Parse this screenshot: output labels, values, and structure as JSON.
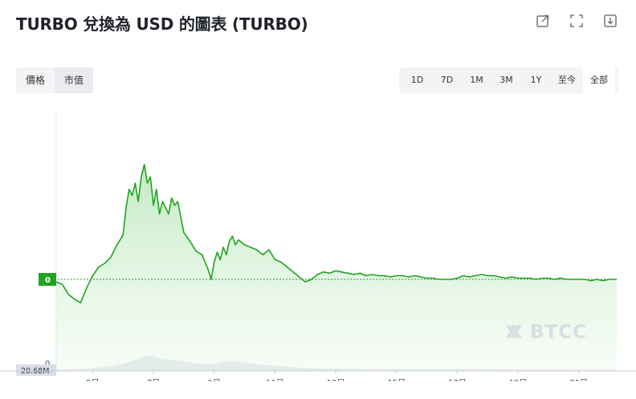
{
  "header": {
    "title": "TURBO 兌換為 USD 的圖表 (TURBO)"
  },
  "icons": [
    "share-icon",
    "fullscreen-icon",
    "download-icon"
  ],
  "metric_tabs": [
    {
      "label": "價格",
      "active": false
    },
    {
      "label": "市值",
      "active": true
    }
  ],
  "range_tabs": [
    {
      "label": "1D",
      "active": false
    },
    {
      "label": "7D",
      "active": false
    },
    {
      "label": "1M",
      "active": false
    },
    {
      "label": "3M",
      "active": false
    },
    {
      "label": "1Y",
      "active": false
    },
    {
      "label": "至今",
      "active": false
    },
    {
      "label": "全部",
      "active": true
    }
  ],
  "watermark": "BTCC",
  "colors": {
    "line": "#1ea31e",
    "fill": "#d9f2d9",
    "volume": "#d9dde6",
    "badge": "#1ea31e"
  },
  "chart_data": {
    "type": "area",
    "x_tick_labels": [
      "5日",
      "7日",
      "9日",
      "11日",
      "13日",
      "15日",
      "17日",
      "19日",
      "21日"
    ],
    "x_tick_values": [
      5,
      7,
      9,
      11,
      13,
      15,
      17,
      19,
      21
    ],
    "xlim": [
      3.8,
      22.25
    ],
    "current_value_label": "0",
    "y_axis_labels": [
      "0"
    ],
    "volume_label": "20.68M",
    "series": [
      {
        "values": [
          [
            3.8,
            0.5
          ],
          [
            4.0,
            0.48
          ],
          [
            4.2,
            0.4
          ],
          [
            4.4,
            0.36
          ],
          [
            4.6,
            0.33
          ],
          [
            4.8,
            0.45
          ],
          [
            5.0,
            0.55
          ],
          [
            5.2,
            0.62
          ],
          [
            5.4,
            0.65
          ],
          [
            5.6,
            0.7
          ],
          [
            5.8,
            0.8
          ],
          [
            6.0,
            0.88
          ],
          [
            6.1,
            1.1
          ],
          [
            6.2,
            1.25
          ],
          [
            6.3,
            1.2
          ],
          [
            6.4,
            1.3
          ],
          [
            6.5,
            1.15
          ],
          [
            6.6,
            1.35
          ],
          [
            6.7,
            1.45
          ],
          [
            6.8,
            1.3
          ],
          [
            6.9,
            1.35
          ],
          [
            7.0,
            1.12
          ],
          [
            7.1,
            1.25
          ],
          [
            7.2,
            1.05
          ],
          [
            7.3,
            1.15
          ],
          [
            7.4,
            1.1
          ],
          [
            7.5,
            1.05
          ],
          [
            7.6,
            1.18
          ],
          [
            7.7,
            1.12
          ],
          [
            7.8,
            1.15
          ],
          [
            8.0,
            0.9
          ],
          [
            8.2,
            0.83
          ],
          [
            8.4,
            0.75
          ],
          [
            8.6,
            0.72
          ],
          [
            8.8,
            0.6
          ],
          [
            8.9,
            0.52
          ],
          [
            9.0,
            0.66
          ],
          [
            9.1,
            0.74
          ],
          [
            9.2,
            0.68
          ],
          [
            9.3,
            0.78
          ],
          [
            9.4,
            0.72
          ],
          [
            9.5,
            0.83
          ],
          [
            9.6,
            0.87
          ],
          [
            9.7,
            0.8
          ],
          [
            9.8,
            0.84
          ],
          [
            10.0,
            0.8
          ],
          [
            10.2,
            0.78
          ],
          [
            10.4,
            0.76
          ],
          [
            10.6,
            0.72
          ],
          [
            10.8,
            0.76
          ],
          [
            11.0,
            0.68
          ],
          [
            11.2,
            0.66
          ],
          [
            11.4,
            0.62
          ],
          [
            11.6,
            0.58
          ],
          [
            11.8,
            0.54
          ],
          [
            12.0,
            0.5
          ],
          [
            12.2,
            0.52
          ],
          [
            12.4,
            0.56
          ],
          [
            12.6,
            0.58
          ],
          [
            12.8,
            0.57
          ],
          [
            13.0,
            0.59
          ],
          [
            13.2,
            0.58
          ],
          [
            13.4,
            0.57
          ],
          [
            13.6,
            0.56
          ],
          [
            13.8,
            0.57
          ],
          [
            14.0,
            0.55
          ],
          [
            14.2,
            0.56
          ],
          [
            14.4,
            0.55
          ],
          [
            14.6,
            0.55
          ],
          [
            14.8,
            0.54
          ],
          [
            15.0,
            0.55
          ],
          [
            15.2,
            0.55
          ],
          [
            15.4,
            0.54
          ],
          [
            15.6,
            0.55
          ],
          [
            15.8,
            0.54
          ],
          [
            16.0,
            0.53
          ],
          [
            16.2,
            0.53
          ],
          [
            16.4,
            0.52
          ],
          [
            16.6,
            0.52
          ],
          [
            16.8,
            0.52
          ],
          [
            17.0,
            0.53
          ],
          [
            17.2,
            0.55
          ],
          [
            17.4,
            0.54
          ],
          [
            17.6,
            0.55
          ],
          [
            17.8,
            0.56
          ],
          [
            18.0,
            0.55
          ],
          [
            18.2,
            0.55
          ],
          [
            18.4,
            0.54
          ],
          [
            18.6,
            0.53
          ],
          [
            18.8,
            0.54
          ],
          [
            19.0,
            0.53
          ],
          [
            19.2,
            0.53
          ],
          [
            19.4,
            0.53
          ],
          [
            19.6,
            0.52
          ],
          [
            19.8,
            0.53
          ],
          [
            20.0,
            0.53
          ],
          [
            20.2,
            0.52
          ],
          [
            20.4,
            0.53
          ],
          [
            20.6,
            0.52
          ],
          [
            20.8,
            0.52
          ],
          [
            21.0,
            0.52
          ],
          [
            21.2,
            0.52
          ],
          [
            21.4,
            0.51
          ],
          [
            21.6,
            0.52
          ],
          [
            21.8,
            0.51
          ],
          [
            22.0,
            0.52
          ],
          [
            22.25,
            0.52
          ]
        ]
      }
    ],
    "volume": [
      [
        3.8,
        0.05
      ],
      [
        4.5,
        0.07
      ],
      [
        5.0,
        0.1
      ],
      [
        5.5,
        0.18
      ],
      [
        6.0,
        0.3
      ],
      [
        6.5,
        0.5
      ],
      [
        6.8,
        0.64
      ],
      [
        7.0,
        0.62
      ],
      [
        7.3,
        0.5
      ],
      [
        7.6,
        0.46
      ],
      [
        8.0,
        0.4
      ],
      [
        8.5,
        0.3
      ],
      [
        8.9,
        0.26
      ],
      [
        9.2,
        0.34
      ],
      [
        9.6,
        0.42
      ],
      [
        10.0,
        0.36
      ],
      [
        10.5,
        0.26
      ],
      [
        11.0,
        0.22
      ],
      [
        11.5,
        0.16
      ],
      [
        12.0,
        0.12
      ],
      [
        13.0,
        0.1
      ],
      [
        14.0,
        0.08
      ],
      [
        15.0,
        0.07
      ],
      [
        16.0,
        0.07
      ],
      [
        17.0,
        0.08
      ],
      [
        18.0,
        0.07
      ],
      [
        19.0,
        0.06
      ],
      [
        20.0,
        0.06
      ],
      [
        21.0,
        0.05
      ],
      [
        22.25,
        0.05
      ]
    ]
  }
}
